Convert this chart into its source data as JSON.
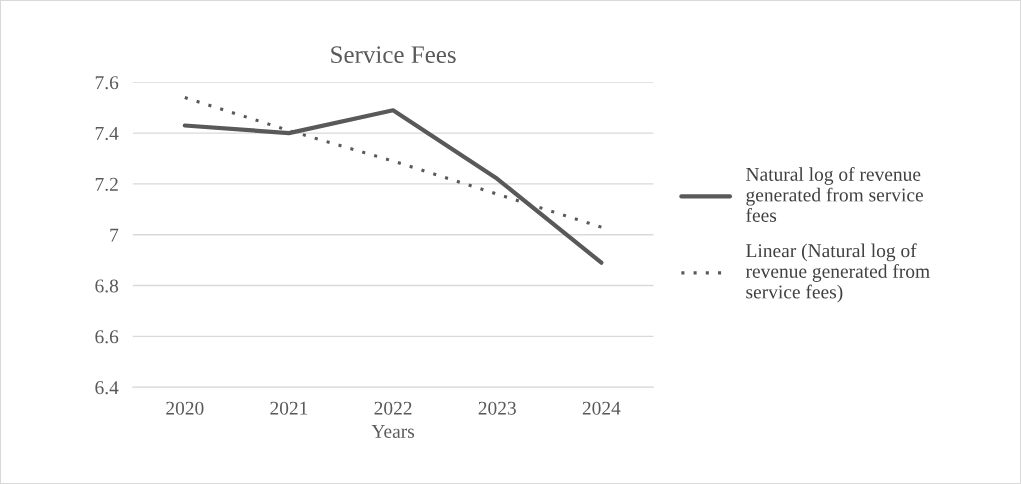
{
  "chart_data": {
    "type": "line",
    "title": "Service Fees",
    "xlabel": "Years",
    "categories": [
      "2020",
      "2021",
      "2022",
      "2023",
      "2024"
    ],
    "series": [
      {
        "name": "Natural log of revenue generated from service fees",
        "color": "#595959",
        "values": [
          7.43,
          7.4,
          7.49,
          7.22,
          6.89
        ],
        "line_style": "solid"
      },
      {
        "name": "Linear (Natural log of revenue generated from service fees)",
        "color": "#595959",
        "values": [
          7.54,
          7.41,
          7.29,
          7.16,
          7.03
        ],
        "line_style": "dotted"
      }
    ],
    "ylim": [
      6.4,
      7.6
    ],
    "yticks": [
      6.4,
      6.6,
      6.8,
      7,
      7.2,
      7.4,
      7.6
    ],
    "grid": "y",
    "legend": "right",
    "marker": "none"
  }
}
